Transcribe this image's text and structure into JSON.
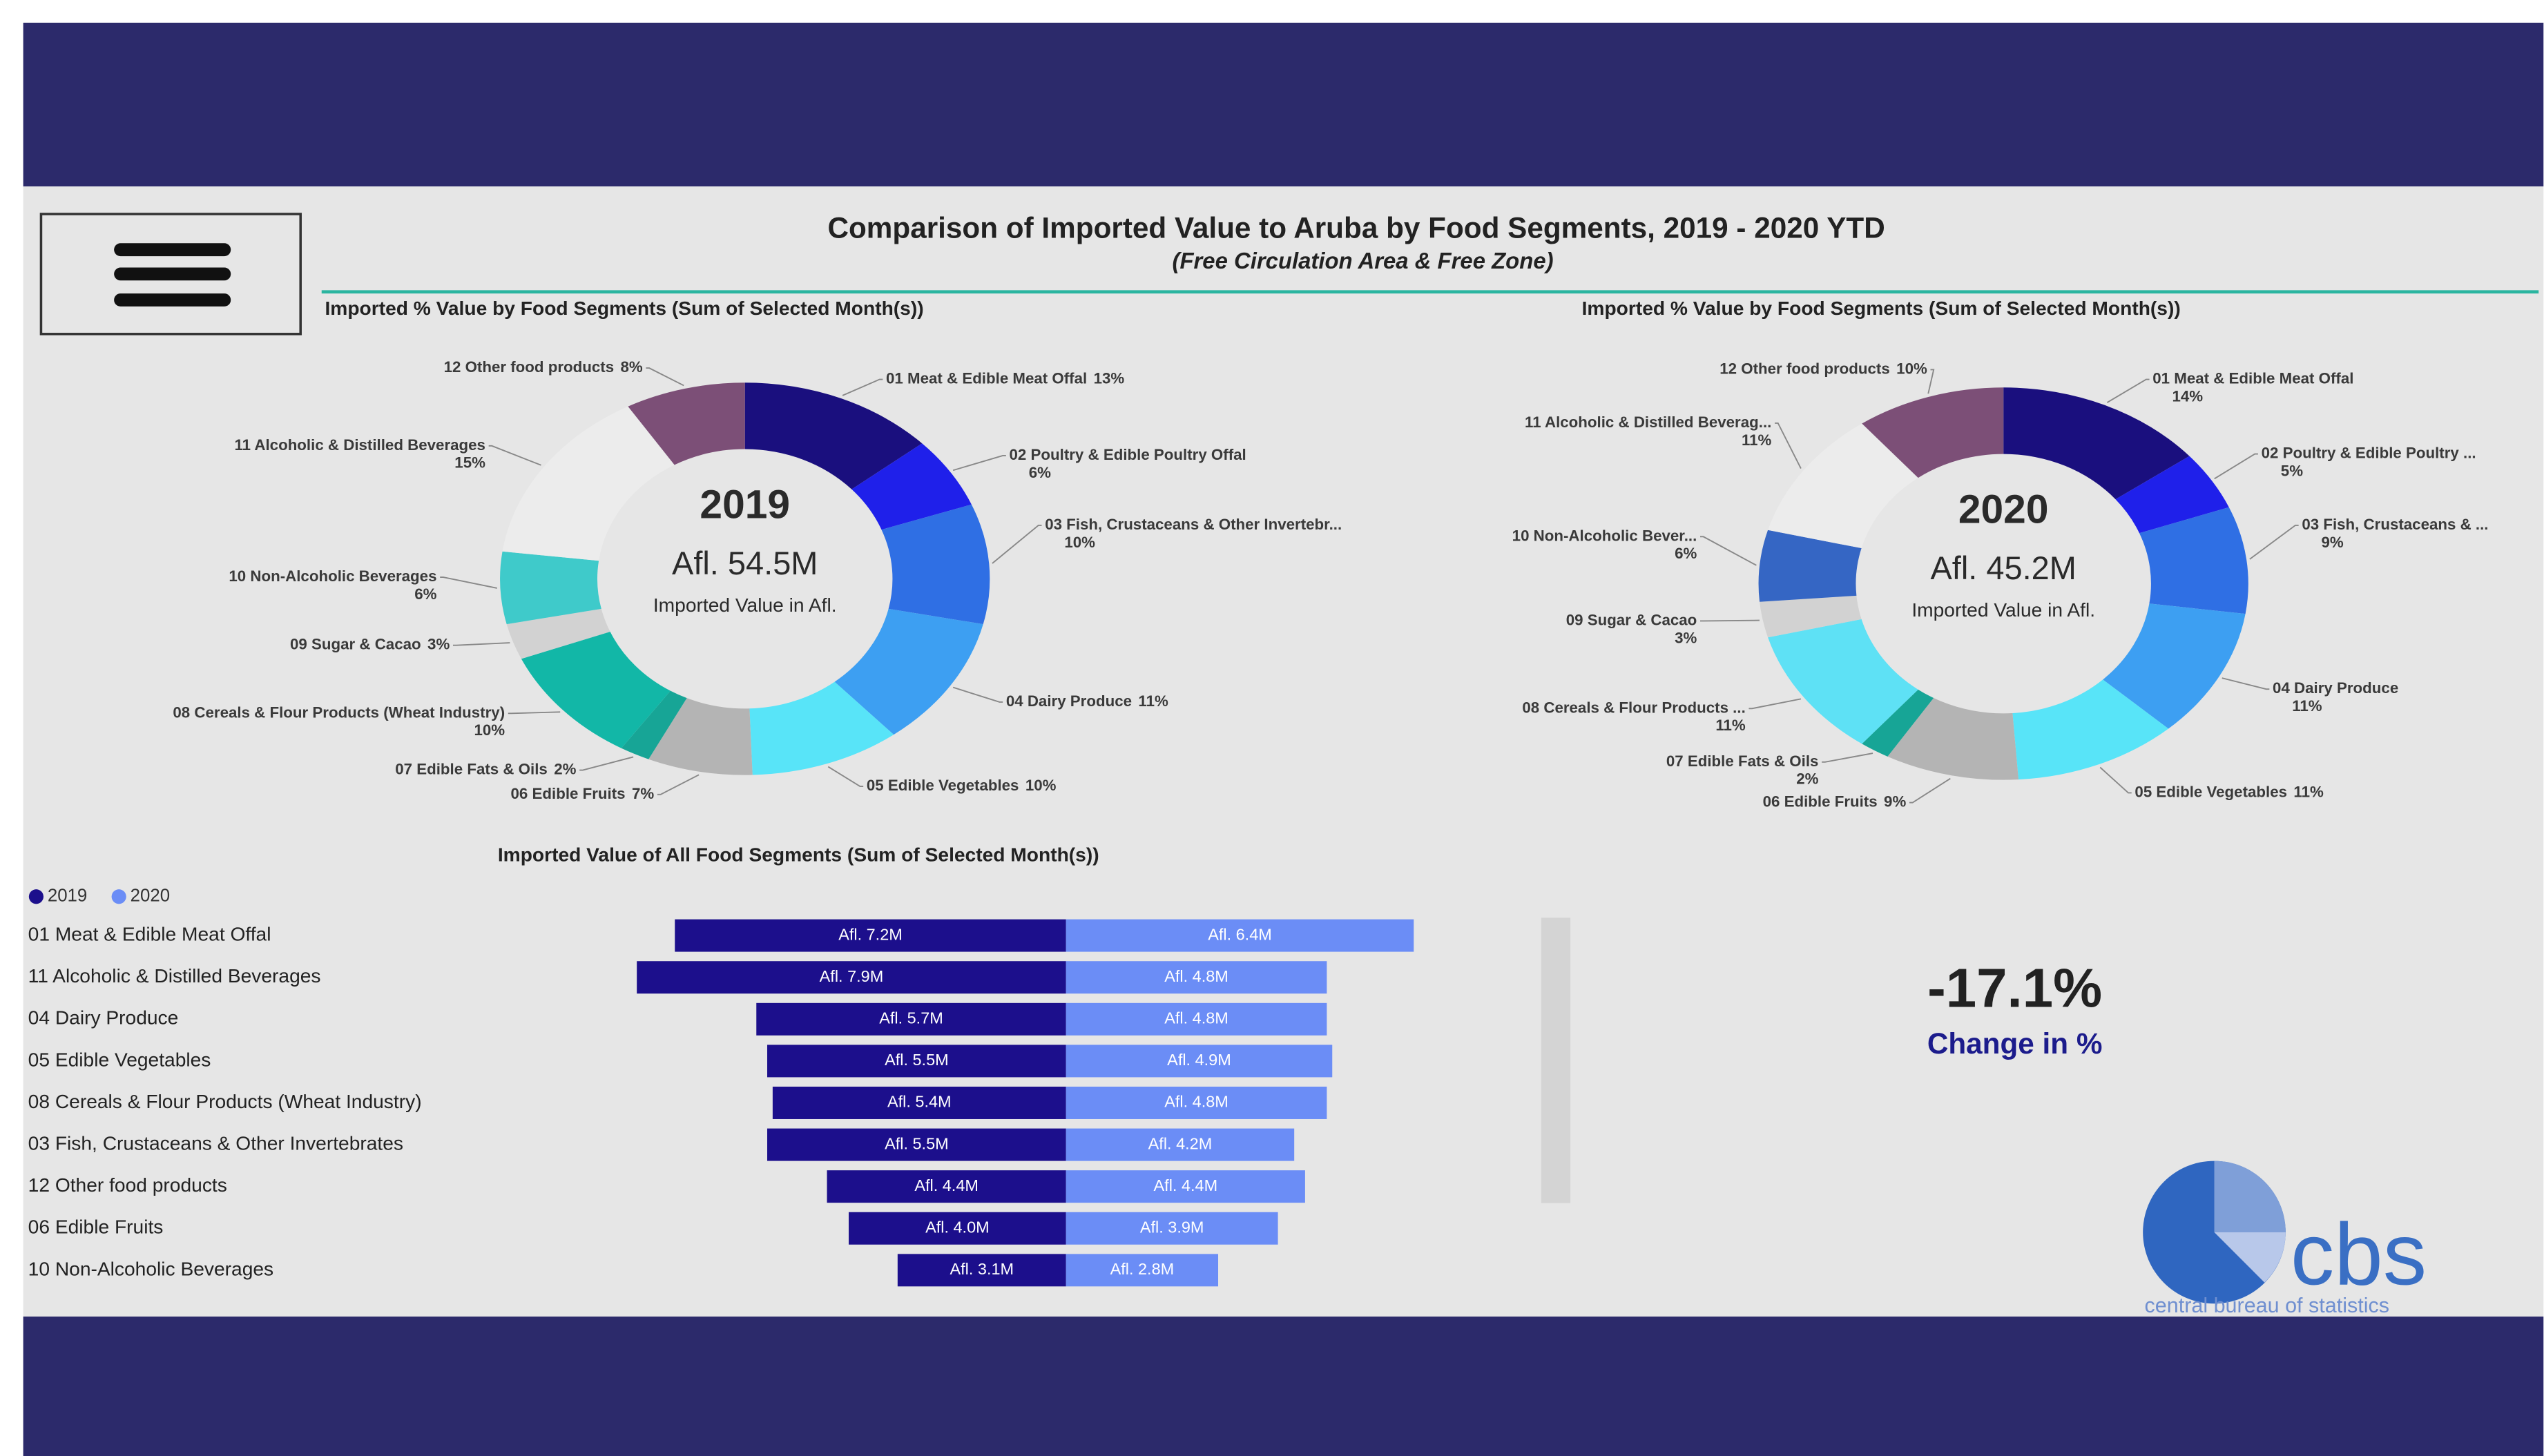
{
  "header": {
    "title": "Comparison of Imported Value to Aruba by Food Segments, 2019 - 2020 YTD",
    "subtitle": "(Free Circulation Area & Free Zone)"
  },
  "chart_data": [
    {
      "type": "donut",
      "title": "Imported % Value by Food Segments (Sum of Selected Month(s))",
      "center_title": "2019",
      "center_value": "Afl. 54.5M",
      "center_label": "Imported Value in Afl.",
      "categories": [
        "01 Meat & Edible Meat Offal",
        "02 Poultry & Edible Poultry Offal",
        "03 Fish, Crustaceans & Other Invertebr...",
        "04 Dairy Produce",
        "05 Edible Vegetables",
        "06 Edible Fruits",
        "07 Edible Fats & Oils",
        "08 Cereals & Flour Products (Wheat Industry)",
        "09 Sugar & Cacao",
        "10 Non-Alcoholic Beverages",
        "11 Alcoholic & Distilled Beverages",
        "12 Other food products"
      ],
      "values": [
        13,
        6,
        10,
        11,
        10,
        7,
        2,
        10,
        3,
        6,
        15,
        8
      ],
      "value_labels": [
        "13%",
        "6%",
        "10%",
        "11%",
        "10%",
        "7%",
        "2%",
        "10%",
        "3%",
        "6%",
        "15%",
        "8%"
      ],
      "colors": [
        "#1a0f7e",
        "#1f20ea",
        "#2f6fe4",
        "#3d9ff2",
        "#58e4f8",
        "#b4b4b4",
        "#17a596",
        "#12b7a7",
        "#d2d2d2",
        "#3fcaca",
        "#ececec",
        "#7c4f77"
      ]
    },
    {
      "type": "donut",
      "title": "Imported % Value by Food Segments (Sum of Selected Month(s))",
      "center_title": "2020",
      "center_value": "Afl. 45.2M",
      "center_label": "Imported Value in Afl.",
      "categories": [
        "01 Meat & Edible Meat Offal",
        "02 Poultry & Edible Poultry ...",
        "03 Fish, Crustaceans & ...",
        "04 Dairy Produce",
        "05 Edible Vegetables",
        "06 Edible Fruits",
        "07 Edible Fats & Oils",
        "08 Cereals & Flour Products ...",
        "09 Sugar & Cacao",
        "10 Non-Alcoholic Bever...",
        "11 Alcoholic & Distilled Beverag...",
        "12 Other food products"
      ],
      "values": [
        14,
        5,
        9,
        11,
        11,
        9,
        2,
        11,
        3,
        6,
        11,
        10
      ],
      "value_labels": [
        "14%",
        "5%",
        "9%",
        "11%",
        "11%",
        "9%",
        "2%",
        "11%",
        "3%",
        "6%",
        "11%",
        "10%"
      ],
      "colors": [
        "#1a0f7e",
        "#1f20ea",
        "#2f6fe4",
        "#3d9ff2",
        "#58e4f8",
        "#b4b4b4",
        "#17a596",
        "#5ee1f5",
        "#d2d2d2",
        "#3566c4",
        "#ececec",
        "#7c4f77"
      ]
    },
    {
      "type": "diverging_bar",
      "title": "Imported Value of All Food Segments (Sum of Selected Month(s))",
      "categories": [
        "01 Meat & Edible Meat Offal",
        "11 Alcoholic & Distilled Beverages",
        "04 Dairy Produce",
        "05 Edible Vegetables",
        "08 Cereals & Flour Products (Wheat Industry)",
        "03 Fish, Crustaceans & Other Invertebrates",
        "12 Other food products",
        "06 Edible Fruits",
        "10 Non-Alcoholic Beverages"
      ],
      "series": [
        {
          "name": "2019",
          "color": "#1c0f8c",
          "values": [
            7.2,
            7.9,
            5.7,
            5.5,
            5.4,
            5.5,
            4.4,
            4.0,
            3.1
          ],
          "value_labels": [
            "Afl. 7.2M",
            "Afl. 7.9M",
            "Afl. 5.7M",
            "Afl. 5.5M",
            "Afl. 5.4M",
            "Afl. 5.5M",
            "Afl. 4.4M",
            "Afl. 4.0M",
            "Afl. 3.1M"
          ]
        },
        {
          "name": "2020",
          "color": "#6b8df6",
          "values": [
            6.4,
            4.8,
            4.8,
            4.9,
            4.8,
            4.2,
            4.4,
            3.9,
            2.8
          ],
          "value_labels": [
            "Afl. 6.4M",
            "Afl. 4.8M",
            "Afl. 4.8M",
            "Afl. 4.9M",
            "Afl. 4.8M",
            "Afl. 4.2M",
            "Afl. 4.4M",
            "Afl. 3.9M",
            "Afl. 2.8M"
          ]
        }
      ]
    }
  ],
  "kpi": {
    "value": "-17.1%",
    "label": "Change in %"
  },
  "logo": {
    "text": "cbs",
    "tagline": "central bureau of statistics"
  }
}
